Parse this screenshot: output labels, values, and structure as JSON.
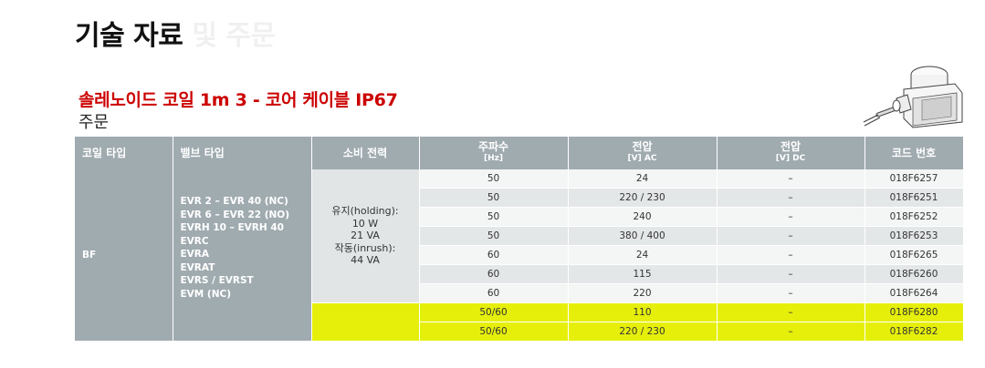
{
  "header": {
    "title_main": "기술 자료",
    "title_faded": "및 주문"
  },
  "section": {
    "title": "솔레노이드 코일 1m 3 - 코어 케이블 IP67",
    "subtitle": "주문"
  },
  "table": {
    "headers": {
      "coil_type": "코일 타입",
      "valve_type": "밸브 타입",
      "power": "소비 전력",
      "freq": "주파수",
      "freq_unit": "[Hz]",
      "voltage_ac": "전압",
      "voltage_ac_unit": "[V] AC",
      "voltage_dc": "전압",
      "voltage_dc_unit": "[V] DC",
      "code": "코드 번호"
    },
    "coil_type": "BF",
    "valve_types": [
      "EVR 2 – EVR 40 (NC)",
      "EVR 6 – EVR 22 (NO)",
      "EVRH 10 – EVRH 40",
      "EVRC",
      "EVRA",
      "EVRAT",
      "EVRS / EVRST",
      "EVM (NC)"
    ],
    "power_lines": [
      "유지(holding):",
      "10 W",
      "21 VA",
      "작동(inrush):",
      "44 VA"
    ],
    "rows": [
      {
        "freq": "50",
        "ac": "24",
        "dc": "–",
        "code": "018F6257"
      },
      {
        "freq": "50",
        "ac": "220 / 230",
        "dc": "–",
        "code": "018F6251"
      },
      {
        "freq": "50",
        "ac": "240",
        "dc": "–",
        "code": "018F6252"
      },
      {
        "freq": "50",
        "ac": "380 / 400",
        "dc": "–",
        "code": "018F6253"
      },
      {
        "freq": "60",
        "ac": "24",
        "dc": "–",
        "code": "018F6265"
      },
      {
        "freq": "60",
        "ac": "115",
        "dc": "–",
        "code": "018F6260"
      },
      {
        "freq": "60",
        "ac": "220",
        "dc": "–",
        "code": "018F6264"
      },
      {
        "freq": "50/60",
        "ac": "110",
        "dc": "–",
        "code": "018F6280"
      },
      {
        "freq": "50/60",
        "ac": "220 / 230",
        "dc": "–",
        "code": "018F6282"
      }
    ]
  },
  "colors": {
    "title_red": "#cc0000",
    "header_gray": "#a0abb0",
    "highlight_yellow": "#e6ef0a"
  },
  "image": {
    "icon": "solenoid-coil-illustration"
  }
}
